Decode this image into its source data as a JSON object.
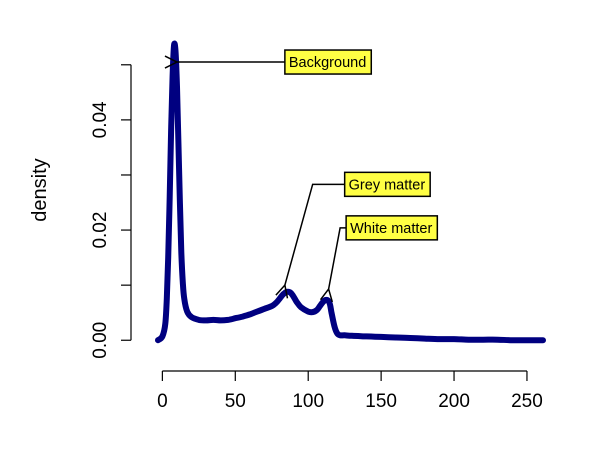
{
  "chart_data": {
    "type": "line",
    "title": "",
    "xlabel": "",
    "ylabel": "density",
    "xlim": [
      -3,
      261
    ],
    "ylim": [
      -0.0005,
      0.0545
    ],
    "x_ticks": [
      0,
      50,
      100,
      150,
      200,
      250
    ],
    "y_ticks": [
      0.0,
      0.02,
      0.04
    ],
    "x_tick_labels": [
      "0",
      "50",
      "100",
      "150",
      "200",
      "250"
    ],
    "y_tick_labels": [
      "0.00",
      "0.02",
      "0.04"
    ],
    "grid": false,
    "line_color": "#000080",
    "series": [
      {
        "x": [
          -3,
          0,
          2,
          3,
          4,
          5,
          6,
          7,
          8,
          9,
          10,
          11,
          12,
          13,
          14,
          15,
          17,
          20,
          25,
          30,
          35,
          40,
          45,
          50,
          55,
          60,
          65,
          70,
          75,
          78,
          80,
          82,
          84,
          86,
          88,
          90,
          92,
          95,
          100,
          103,
          106,
          108,
          110,
          112,
          114,
          115,
          116,
          118,
          120,
          122,
          125,
          130,
          140,
          150,
          160,
          170,
          180,
          190,
          200,
          210,
          220,
          230,
          240,
          250,
          261
        ],
        "y": [
          0.0,
          0.0007,
          0.003,
          0.0075,
          0.015,
          0.026,
          0.038,
          0.048,
          0.0535,
          0.0525,
          0.046,
          0.036,
          0.025,
          0.016,
          0.0105,
          0.0075,
          0.0052,
          0.0042,
          0.0037,
          0.0036,
          0.0037,
          0.0036,
          0.0037,
          0.004,
          0.0043,
          0.0047,
          0.0052,
          0.0057,
          0.0062,
          0.0068,
          0.0074,
          0.0081,
          0.0086,
          0.0088,
          0.0086,
          0.0079,
          0.007,
          0.006,
          0.0052,
          0.0051,
          0.0055,
          0.0062,
          0.0069,
          0.0073,
          0.0071,
          0.0064,
          0.005,
          0.0025,
          0.0012,
          0.0009,
          0.0009,
          0.0008,
          0.0007,
          0.0006,
          0.0005,
          0.0004,
          0.0003,
          0.0002,
          0.0002,
          0.0001,
          0.0001,
          0.0001,
          0.0,
          0.0,
          0.0
        ]
      }
    ],
    "annotations": [
      {
        "text": "Background",
        "target": [
          10,
          0.0505
        ],
        "label_at": [
          84,
          0.0505
        ]
      },
      {
        "text": "Grey matter",
        "target": [
          84,
          0.01
        ],
        "label_at": [
          125,
          0.0283
        ]
      },
      {
        "text": "White matter",
        "target": [
          114,
          0.0093
        ],
        "label_at": [
          126,
          0.0204
        ]
      }
    ],
    "label_box_color": "#ffff44"
  }
}
